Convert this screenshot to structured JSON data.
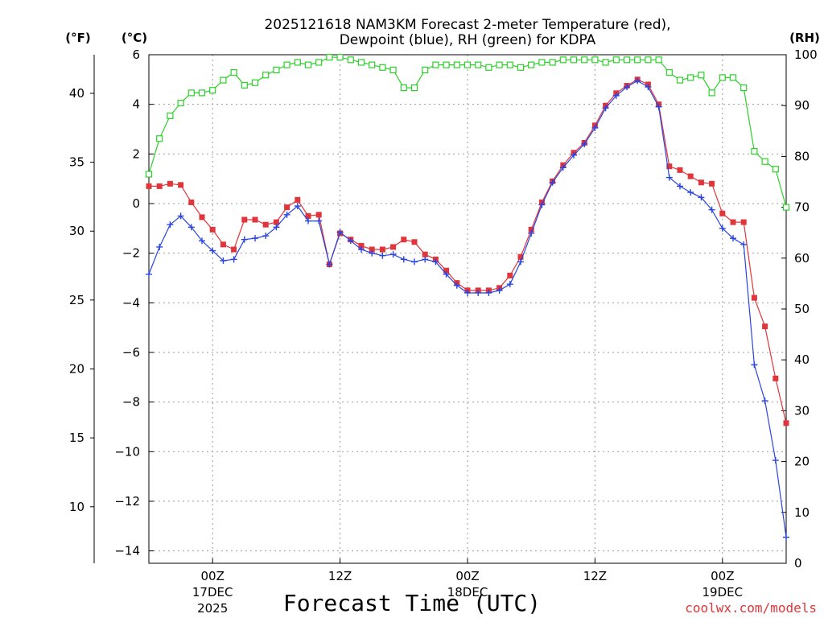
{
  "chart_data": {
    "type": "line",
    "title": "2025121618 NAM3KM Forecast 2-meter Temperature (red),",
    "subtitle": "Dewpoint (blue), RH (green) for KDPA",
    "xlabel": "Forecast Time (UTC)",
    "credit": "coolwx.com/models",
    "units": {
      "fahrenheit": "(°F)",
      "celsius": "(°C)",
      "rh": "(RH)"
    },
    "x_range_hours": [
      0,
      60
    ],
    "ylim_celsius": [
      -14.5,
      6
    ],
    "ylim_rh": [
      0,
      100
    ],
    "celsius_ticks": [
      "6",
      "4",
      "2",
      "0",
      "−2",
      "−4",
      "−6",
      "−8",
      "−10",
      "−12",
      "−14"
    ],
    "celsius_tick_values": [
      6,
      4,
      2,
      0,
      -2,
      -4,
      -6,
      -8,
      -10,
      -12,
      -14
    ],
    "fahrenheit_ticks": [
      "40",
      "35",
      "30",
      "25",
      "20",
      "15",
      "10"
    ],
    "fahrenheit_tick_values": [
      40,
      35,
      30,
      25,
      20,
      15,
      10
    ],
    "rh_ticks": [
      "100",
      "90",
      "80",
      "70",
      "60",
      "50",
      "40",
      "30",
      "20",
      "10",
      "0"
    ],
    "rh_tick_values": [
      100,
      90,
      80,
      70,
      60,
      50,
      40,
      30,
      20,
      10,
      0
    ],
    "x_ticks": [
      {
        "hour": 6,
        "label": "00Z",
        "line2": "17DEC",
        "line3": "2025"
      },
      {
        "hour": 18,
        "label": "12Z",
        "line2": "",
        "line3": ""
      },
      {
        "hour": 30,
        "label": "00Z",
        "line2": "18DEC",
        "line3": ""
      },
      {
        "hour": 42,
        "label": "12Z",
        "line2": "",
        "line3": ""
      },
      {
        "hour": 54,
        "label": "00Z",
        "line2": "19DEC",
        "line3": ""
      }
    ],
    "hours": [
      0,
      1,
      2,
      3,
      4,
      5,
      6,
      7,
      8,
      9,
      10,
      11,
      12,
      13,
      14,
      15,
      16,
      17,
      18,
      19,
      20,
      21,
      22,
      23,
      24,
      25,
      26,
      27,
      28,
      29,
      30,
      31,
      32,
      33,
      34,
      35,
      36,
      37,
      38,
      39,
      40,
      41,
      42,
      43,
      44,
      45,
      46,
      47,
      48,
      49,
      50,
      51,
      52,
      53,
      54,
      55,
      56,
      57,
      58,
      59,
      60
    ],
    "series": [
      {
        "name": "2-meter Temperature",
        "unit": "°C",
        "color": "#e0353a",
        "marker": "filled-square",
        "values": [
          0.7,
          0.7,
          0.8,
          0.75,
          0.05,
          -0.55,
          -1.05,
          -1.65,
          -1.85,
          -0.65,
          -0.65,
          -0.85,
          -0.75,
          -0.15,
          0.15,
          -0.5,
          -0.45,
          -2.45,
          -1.2,
          -1.45,
          -1.7,
          -1.85,
          -1.85,
          -1.75,
          -1.45,
          -1.55,
          -2.05,
          -2.25,
          -2.7,
          -3.2,
          -3.5,
          -3.5,
          -3.5,
          -3.4,
          -2.9,
          -2.15,
          -1.05,
          0.05,
          0.9,
          1.55,
          2.05,
          2.45,
          3.15,
          3.95,
          4.45,
          4.75,
          5.0,
          4.8,
          4.0,
          1.5,
          1.35,
          1.1,
          0.85,
          0.8,
          -0.4,
          -0.75,
          -0.75,
          -3.8,
          -4.95,
          -7.05,
          -8.85
        ]
      },
      {
        "name": "Dewpoint",
        "unit": "°C",
        "color": "#2a44e0",
        "marker": "plus",
        "values": [
          -2.85,
          -1.75,
          -0.85,
          -0.5,
          -0.95,
          -1.5,
          -1.9,
          -2.3,
          -2.25,
          -1.45,
          -1.4,
          -1.3,
          -0.95,
          -0.45,
          -0.1,
          -0.7,
          -0.7,
          -2.45,
          -1.15,
          -1.5,
          -1.85,
          -2.0,
          -2.1,
          -2.05,
          -2.25,
          -2.35,
          -2.25,
          -2.35,
          -2.85,
          -3.3,
          -3.6,
          -3.6,
          -3.6,
          -3.5,
          -3.25,
          -2.35,
          -1.2,
          -0.05,
          0.85,
          1.45,
          1.95,
          2.4,
          3.05,
          3.85,
          4.35,
          4.7,
          4.95,
          4.7,
          3.9,
          1.05,
          0.7,
          0.45,
          0.25,
          -0.25,
          -1.0,
          -1.4,
          -1.65,
          -6.5,
          -7.95,
          -10.35,
          -13.45
        ]
      },
      {
        "name": "Relative Humidity",
        "unit": "%",
        "color": "#2cd02a",
        "marker": "open-square",
        "values": [
          76.5,
          83.5,
          88,
          90.5,
          92.5,
          92.5,
          93,
          95,
          96.5,
          94,
          94.5,
          96,
          97,
          98,
          98.5,
          98,
          98.5,
          99.5,
          99.5,
          99,
          98.5,
          98,
          97.5,
          97,
          93.5,
          93.5,
          97,
          98,
          98,
          98,
          98,
          98,
          97.5,
          98,
          98,
          97.5,
          98,
          98.5,
          98.5,
          99,
          99,
          99,
          99,
          98.5,
          99,
          99,
          99,
          99,
          99,
          96.5,
          95,
          95.5,
          96,
          92.5,
          95.5,
          95.5,
          93.5,
          81,
          79,
          77.5,
          70
        ]
      }
    ]
  }
}
